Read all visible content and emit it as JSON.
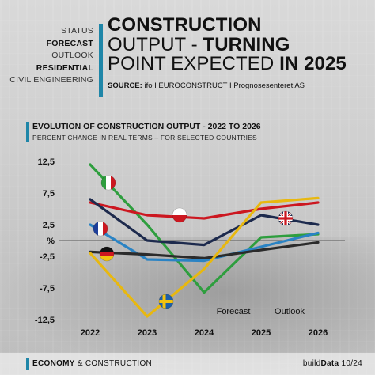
{
  "menu": [
    "STATUS",
    "FORECAST",
    "OUTLOOK",
    "RESIDENTIAL",
    "CIVIL ENGINEERING"
  ],
  "title": {
    "line1": "CONSTRUCTION",
    "line2_a": "OUTPUT - ",
    "line2_b": "TURNING",
    "line3_a": "POINT EXPECTED ",
    "line3_b": "IN 2025"
  },
  "source": {
    "label": "SOURCE:",
    "text": " ifo I EUROCONSTRUCT I Prognosesenteret AS"
  },
  "footer": {
    "left_a": "ECONOMY",
    "left_b": " & CONSTRUCTION",
    "right_a": "build",
    "right_b": "Data",
    "right_c": " 10/24"
  },
  "colors": {
    "accent": "#1f86a8",
    "zero_line": "#555555"
  },
  "chart_data": {
    "type": "line",
    "title": "EVOLUTION OF CONSTRUCTION OUTPUT - 2022 TO 2026",
    "subtitle": "PERCENT CHANGE IN REAL TERMS – FOR SELECTED COUNTRIES",
    "x": [
      "2022",
      "2023",
      "2024",
      "2025",
      "2026"
    ],
    "yticks": [
      "12,5",
      "7,5",
      "2,5",
      "%",
      "-2,5",
      "-7,5",
      "-12,5"
    ],
    "ylim": [
      -12.5,
      12.5
    ],
    "annotations": [
      "Forecast",
      "Outlook"
    ],
    "series": [
      {
        "flag": "italy",
        "color": "#2e9e3e",
        "values": [
          12.0,
          2.5,
          -8.2,
          0.5,
          1.0
        ]
      },
      {
        "flag": "poland",
        "color": "#cc1720",
        "values": [
          6.0,
          4.0,
          3.5,
          5.0,
          6.0
        ]
      },
      {
        "flag": "uk",
        "color": "#1d2a4d",
        "values": [
          6.5,
          0.0,
          -0.7,
          4.0,
          2.5
        ]
      },
      {
        "flag": "france",
        "color": "#2a83c4",
        "values": [
          2.5,
          -3.0,
          -3.2,
          -1.0,
          1.2
        ]
      },
      {
        "flag": "germany",
        "color": "#2b2b2b",
        "values": [
          -1.8,
          -2.2,
          -2.8,
          -1.5,
          -0.3
        ]
      },
      {
        "flag": "sweden",
        "color": "#e8b80f",
        "values": [
          -2.0,
          -12.0,
          -4.5,
          6.0,
          6.7
        ]
      }
    ]
  }
}
